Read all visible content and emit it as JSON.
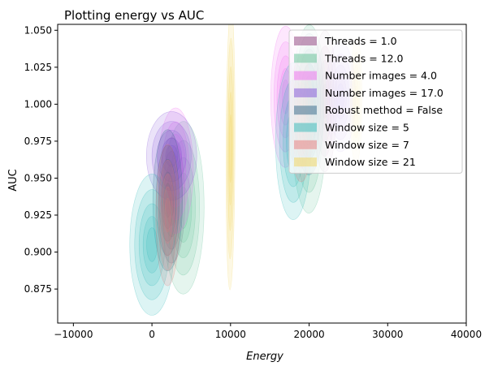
{
  "chart_data": {
    "type": "kde-density",
    "title": "Plotting energy vs AUC",
    "xlabel": "Energy",
    "ylabel": "AUC",
    "xlim": [
      -12000,
      40000
    ],
    "ylim": [
      0.852,
      1.054
    ],
    "xticks": [
      -10000,
      0,
      10000,
      20000,
      30000,
      40000
    ],
    "xtick_labels": [
      "−10000",
      "0",
      "10000",
      "20000",
      "30000",
      "40000"
    ],
    "yticks": [
      0.875,
      0.9,
      0.925,
      0.95,
      0.975,
      1.0,
      1.025,
      1.05
    ],
    "ytick_labels": [
      "0.875",
      "0.900",
      "0.925",
      "0.950",
      "0.975",
      "1.000",
      "1.025",
      "1.050"
    ],
    "legend_position": "top-right",
    "grid": false,
    "series": [
      {
        "name": "Threads = 1.0",
        "color": "#8b3a7a",
        "blobs": [
          {
            "cx": 2500,
            "cy": 0.935,
            "rx": 8000,
            "ry": 0.009,
            "angle": 0.002
          },
          {
            "cx": 22000,
            "cy": 1.002,
            "rx": 9000,
            "ry": 0.008,
            "angle": 0.0015
          }
        ]
      },
      {
        "name": "Threads = 12.0",
        "color": "#5fbf94",
        "blobs": [
          {
            "cx": 4000,
            "cy": 0.93,
            "rx": 11000,
            "ry": 0.014,
            "angle": 0.0025
          },
          {
            "cx": 20000,
            "cy": 0.99,
            "rx": 12000,
            "ry": 0.012,
            "angle": 0.002
          }
        ]
      },
      {
        "name": "Number images = 4.0",
        "color": "#f06cf0",
        "blobs": [
          {
            "cx": 3000,
            "cy": 0.955,
            "rx": 8000,
            "ry": 0.012,
            "angle": 0.0025
          },
          {
            "cx": 17000,
            "cy": 1.005,
            "rx": 9000,
            "ry": 0.01,
            "angle": 0.002
          }
        ]
      },
      {
        "name": "Number images = 17.0",
        "color": "#8050d8",
        "blobs": [
          {
            "cx": 2500,
            "cy": 0.965,
            "rx": 3200,
            "ry": 0.03,
            "angle": 0.0
          },
          {
            "cx": 24000,
            "cy": 1.005,
            "rx": 7000,
            "ry": 0.01,
            "angle": 0.0015
          }
        ]
      },
      {
        "name": "Robust method = False",
        "color": "#2e6485",
        "blobs": [
          {
            "cx": 2000,
            "cy": 0.935,
            "rx": 9000,
            "ry": 0.01,
            "angle": 0.003
          },
          {
            "cx": 20000,
            "cy": 1.0,
            "rx": 9000,
            "ry": 0.01,
            "angle": 0.002
          }
        ]
      },
      {
        "name": "Window size = 5",
        "color": "#2eb8b8",
        "blobs": [
          {
            "cx": 0,
            "cy": 0.905,
            "rx": 9000,
            "ry": 0.015,
            "angle": 0.0035
          },
          {
            "cx": 18000,
            "cy": 0.975,
            "rx": 10000,
            "ry": 0.012,
            "angle": 0.0025
          }
        ]
      },
      {
        "name": "Window size = 7",
        "color": "#e87a7a",
        "blobs": [
          {
            "cx": 2000,
            "cy": 0.925,
            "rx": 9000,
            "ry": 0.008,
            "angle": 0.0035
          },
          {
            "cx": 19000,
            "cy": 0.99,
            "rx": 8000,
            "ry": 0.008,
            "angle": 0.0025
          }
        ]
      },
      {
        "name": "Window size = 21",
        "color": "#f2d35a",
        "blobs": [
          {
            "cx": 10000,
            "cy": 0.97,
            "rx": 18000,
            "ry": 0.003,
            "angle": 0.0013
          },
          {
            "cx": 26000,
            "cy": 1.002,
            "rx": 8000,
            "ry": 0.004,
            "angle": 0.0012
          }
        ]
      }
    ]
  }
}
